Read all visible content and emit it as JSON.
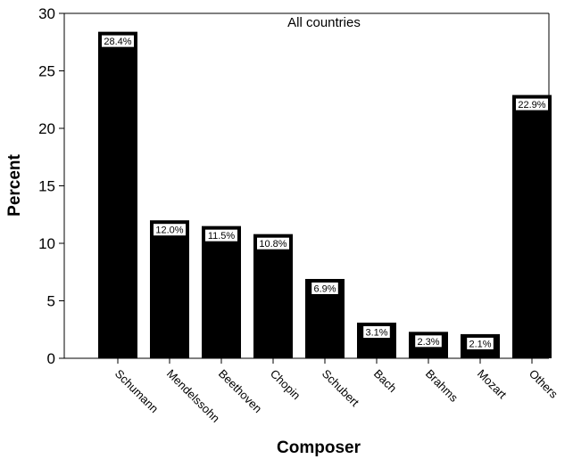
{
  "chart_data": {
    "type": "bar",
    "title": "All countries",
    "xlabel": "Composer",
    "ylabel": "Percent",
    "ylim": [
      0,
      30
    ],
    "yticks": [
      0,
      5,
      10,
      15,
      20,
      25,
      30
    ],
    "grid": false,
    "categories": [
      "Schumann",
      "Mendelssohn",
      "Beethoven",
      "Chopin",
      "Schubert",
      "Bach",
      "Brahms",
      "Mozart",
      "Others"
    ],
    "values": [
      28.4,
      12.0,
      11.5,
      10.8,
      6.9,
      3.1,
      2.3,
      2.1,
      22.9
    ],
    "data_labels": [
      "28.4%",
      "12.0%",
      "11.5%",
      "10.8%",
      "6.9%",
      "3.1%",
      "2.3%",
      "2.1%",
      "22.9%"
    ],
    "bar_color": "#000000",
    "label_box_color": "#ffffff"
  }
}
